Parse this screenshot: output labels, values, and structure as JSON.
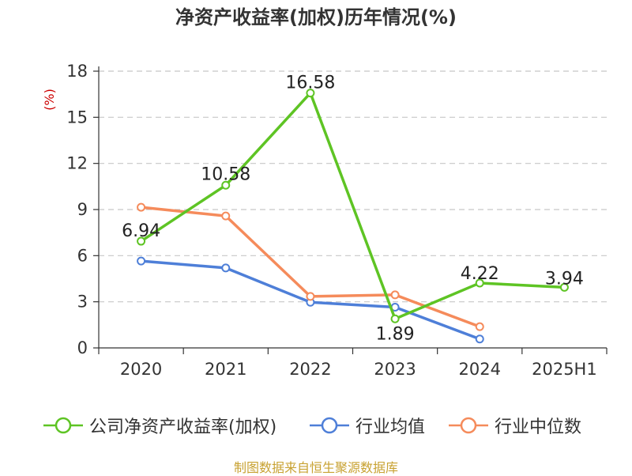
{
  "title": "净资产收益率(加权)历年情况(%)",
  "source": "制图数据来自恒生聚源数据库",
  "colors": {
    "company": "#5ec424",
    "industry_mean": "#4e7fd8",
    "industry_median": "#f58b5b",
    "unit": "#cc0000",
    "source": "#c8a232"
  },
  "chart_data": {
    "type": "line",
    "title": "净资产收益率(加权)历年情况(%)",
    "ylabel": "(%)",
    "ylim": [
      0,
      18
    ],
    "yticks": [
      0,
      3,
      6,
      9,
      12,
      15,
      18
    ],
    "categories": [
      "2020",
      "2021",
      "2022",
      "2023",
      "2024",
      "2025H1"
    ],
    "grid": true,
    "legend_position": "bottom",
    "series": [
      {
        "name": "公司净资产收益率(加权)",
        "color": "#5ec424",
        "values": [
          6.94,
          10.58,
          16.58,
          1.89,
          4.22,
          3.94
        ],
        "labels": [
          "6.94",
          "10.58",
          "16.58",
          "1.89",
          "4.22",
          "3.94"
        ]
      },
      {
        "name": "行业均值",
        "color": "#4e7fd8",
        "values": [
          5.65,
          5.2,
          2.97,
          2.65,
          0.58,
          null
        ]
      },
      {
        "name": "行业中位数",
        "color": "#f58b5b",
        "values": [
          9.15,
          8.58,
          3.35,
          3.45,
          1.38,
          null
        ]
      }
    ]
  }
}
